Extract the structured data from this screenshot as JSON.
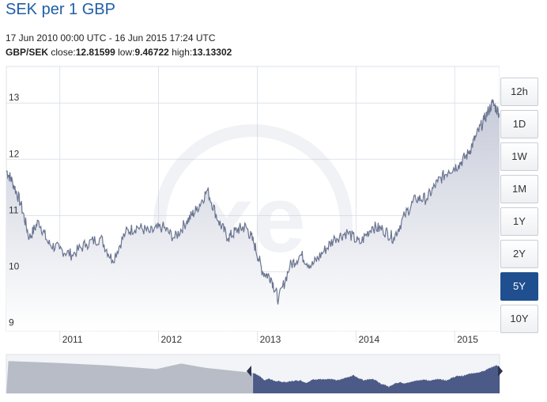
{
  "header": {
    "title": "SEK per 1 GBP",
    "range_text": "17 Jun 2010 00:00 UTC - 16 Jun 2015 17:24 UTC",
    "pair": "GBP/SEK",
    "close_label": "close:",
    "close_value": "12.81599",
    "low_label": "low:",
    "low_value": "9.46722",
    "high_label": "high:",
    "high_value": "13.13302"
  },
  "range_buttons": [
    {
      "label": "12h",
      "active": false
    },
    {
      "label": "1D",
      "active": false
    },
    {
      "label": "1W",
      "active": false
    },
    {
      "label": "1M",
      "active": false
    },
    {
      "label": "1Y",
      "active": false
    },
    {
      "label": "2Y",
      "active": false
    },
    {
      "label": "5Y",
      "active": true
    },
    {
      "label": "10Y",
      "active": false
    }
  ],
  "colors": {
    "line": "#6b7591",
    "area_top": "#c7cbd9",
    "area_bottom": "#ffffff",
    "accent": "#1f4f8f",
    "title": "#1f5fa6",
    "navigator_selected": "#4b5a86",
    "navigator_unselected": "#b8bcc6"
  },
  "chart_data": {
    "type": "area",
    "title": "SEK per 1 GBP",
    "xlabel": "",
    "ylabel": "",
    "x_range": [
      "2010-06-17",
      "2015-06-16"
    ],
    "ylim": [
      8.95,
      13.65
    ],
    "y_ticks": [
      9,
      10,
      11,
      12,
      13
    ],
    "x_ticks": [
      "2011",
      "2012",
      "2013",
      "2014",
      "2015"
    ],
    "grid": true,
    "series": [
      {
        "name": "GBP/SEK",
        "x": [
          "2010-06-17",
          "2010-07-10",
          "2010-08-10",
          "2010-09-10",
          "2010-10-15",
          "2010-11-20",
          "2010-12-31",
          "2011-02-15",
          "2011-04-10",
          "2011-06-01",
          "2011-07-15",
          "2011-09-01",
          "2011-10-15",
          "2011-12-01",
          "2012-01-15",
          "2012-03-01",
          "2012-04-15",
          "2012-05-20",
          "2012-06-30",
          "2012-08-10",
          "2012-09-15",
          "2012-10-20",
          "2012-11-20",
          "2012-12-20",
          "2013-01-20",
          "2013-02-20",
          "2013-03-20",
          "2013-05-01",
          "2013-06-10",
          "2013-07-20",
          "2013-09-01",
          "2013-10-15",
          "2013-12-01",
          "2014-01-15",
          "2014-03-01",
          "2014-04-10",
          "2014-05-20",
          "2014-06-30",
          "2014-08-10",
          "2014-09-20",
          "2014-10-30",
          "2014-12-10",
          "2015-01-15",
          "2015-02-20",
          "2015-03-20",
          "2015-04-20",
          "2015-05-20",
          "2015-06-16"
        ],
        "values": [
          11.8,
          11.6,
          11.2,
          10.6,
          10.9,
          10.5,
          10.4,
          10.3,
          10.5,
          10.6,
          10.2,
          10.7,
          10.8,
          10.7,
          10.8,
          10.6,
          10.9,
          11.1,
          11.45,
          10.9,
          10.6,
          10.75,
          10.8,
          10.5,
          10.0,
          9.9,
          9.5,
          10.1,
          10.3,
          10.1,
          10.35,
          10.6,
          10.7,
          10.5,
          10.8,
          10.75,
          10.6,
          11.0,
          11.3,
          11.3,
          11.6,
          11.8,
          11.9,
          12.1,
          12.4,
          12.7,
          13.0,
          12.82
        ]
      }
    ],
    "annotations": [
      "xe"
    ]
  }
}
